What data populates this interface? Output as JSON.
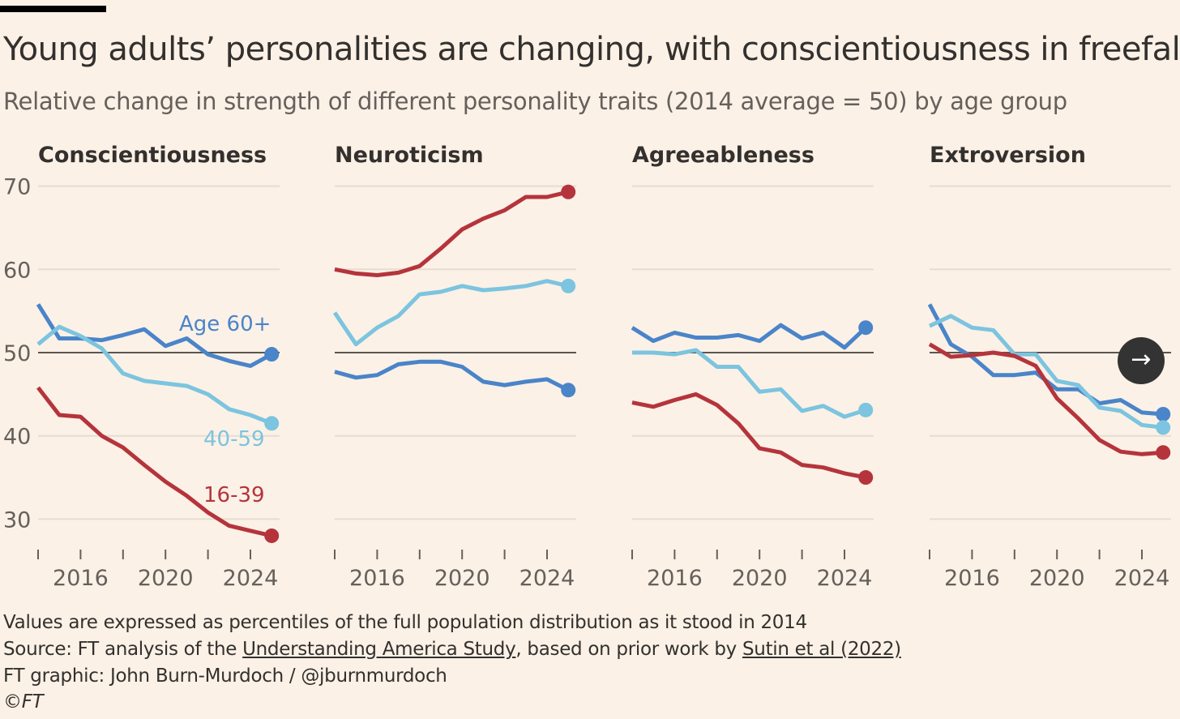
{
  "title": "Young adults’ personalities are changing, with conscientiousness in freefall",
  "subtitle": "Relative change in strength of different personality traits (2014 average = 50) by age group",
  "footer": {
    "note": "Values are expressed as percentiles of the full population distribution as it stood in 2014",
    "source_prefix": "Source: FT analysis of the ",
    "source_link1": "Understanding America Study",
    "source_mid": ", based on prior work by ",
    "source_link2": "Sutin et al (2022)",
    "credit": "FT graphic: John Burn-Murdoch / @jburnmurdoch",
    "copyright": "©FT"
  },
  "next_button": {
    "icon": "arrow-right-icon",
    "glyph": "→"
  },
  "colors": {
    "16-39": "#b5343c",
    "40-59": "#7cc4df",
    "60+": "#4a84c9",
    "baseline": "#5a5550",
    "grid": "#e6ddd2"
  },
  "chart_data": [
    {
      "type": "line",
      "title": "Conscientiousness",
      "x": [
        2014,
        2015,
        2016,
        2017,
        2018,
        2019,
        2020,
        2021,
        2022,
        2023,
        2024,
        2025
      ],
      "xticks": [
        2016,
        2020,
        2024
      ],
      "ylim": [
        26,
        70
      ],
      "yticks": [
        30,
        40,
        50,
        60,
        70
      ],
      "baseline": 50,
      "labels": {
        "60+": "Age 60+",
        "40-59": "40-59",
        "16-39": "16-39"
      },
      "series": [
        {
          "name": "60+",
          "values": [
            55.8,
            51.7,
            51.7,
            51.5,
            52.1,
            52.8,
            50.8,
            51.7,
            49.8,
            49.0,
            48.4,
            49.8
          ]
        },
        {
          "name": "40-59",
          "values": [
            51.0,
            53.1,
            52.0,
            50.5,
            47.5,
            46.6,
            46.3,
            46.0,
            45.0,
            43.2,
            42.5,
            41.5
          ]
        },
        {
          "name": "16-39",
          "values": [
            45.8,
            42.5,
            42.3,
            40.0,
            38.6,
            36.5,
            34.5,
            32.8,
            30.8,
            29.2,
            28.6,
            28.0
          ]
        }
      ]
    },
    {
      "type": "line",
      "title": "Neuroticism",
      "x": [
        2014,
        2015,
        2016,
        2017,
        2018,
        2019,
        2020,
        2021,
        2022,
        2023,
        2024,
        2025
      ],
      "xticks": [
        2016,
        2020,
        2024
      ],
      "ylim": [
        26,
        70
      ],
      "baseline": 50,
      "series": [
        {
          "name": "60+",
          "values": [
            47.7,
            47.0,
            47.3,
            48.6,
            48.9,
            48.9,
            48.3,
            46.5,
            46.1,
            46.5,
            46.8,
            45.5
          ]
        },
        {
          "name": "40-59",
          "values": [
            54.8,
            51.0,
            53.0,
            54.4,
            57.0,
            57.3,
            58.0,
            57.5,
            57.7,
            58.0,
            58.6,
            58.0
          ]
        },
        {
          "name": "16-39",
          "values": [
            60.0,
            59.5,
            59.3,
            59.6,
            60.4,
            62.5,
            64.8,
            66.1,
            67.1,
            68.7,
            68.7,
            69.3
          ]
        }
      ]
    },
    {
      "type": "line",
      "title": "Agreeableness",
      "x": [
        2014,
        2015,
        2016,
        2017,
        2018,
        2019,
        2020,
        2021,
        2022,
        2023,
        2024,
        2025
      ],
      "xticks": [
        2016,
        2020,
        2024
      ],
      "ylim": [
        26,
        70
      ],
      "baseline": 50,
      "series": [
        {
          "name": "60+",
          "values": [
            53.0,
            51.4,
            52.4,
            51.8,
            51.8,
            52.1,
            51.4,
            53.3,
            51.7,
            52.4,
            50.6,
            53.0
          ]
        },
        {
          "name": "40-59",
          "values": [
            50.0,
            50.0,
            49.8,
            50.3,
            48.3,
            48.3,
            45.3,
            45.6,
            43.0,
            43.6,
            42.3,
            43.1
          ]
        },
        {
          "name": "16-39",
          "values": [
            44.0,
            43.5,
            44.3,
            45.0,
            43.7,
            41.5,
            38.5,
            38.0,
            36.5,
            36.2,
            35.5,
            35.0
          ]
        }
      ]
    },
    {
      "type": "line",
      "title": "Extroversion",
      "x": [
        2014,
        2015,
        2016,
        2017,
        2018,
        2019,
        2020,
        2021,
        2022,
        2023,
        2024,
        2025
      ],
      "xticks": [
        2016,
        2020,
        2024
      ],
      "ylim": [
        26,
        70
      ],
      "baseline": 50,
      "series": [
        {
          "name": "60+",
          "values": [
            55.8,
            51.0,
            49.5,
            47.3,
            47.3,
            47.6,
            45.6,
            45.6,
            43.9,
            44.3,
            42.8,
            42.6
          ]
        },
        {
          "name": "40-59",
          "values": [
            53.2,
            54.4,
            53.0,
            52.7,
            49.8,
            49.8,
            46.6,
            46.1,
            43.4,
            43.0,
            41.3,
            41.0
          ]
        },
        {
          "name": "16-39",
          "values": [
            51.0,
            49.5,
            49.7,
            50.0,
            49.6,
            48.4,
            44.5,
            42.1,
            39.5,
            38.1,
            37.8,
            38.0
          ]
        }
      ]
    }
  ]
}
